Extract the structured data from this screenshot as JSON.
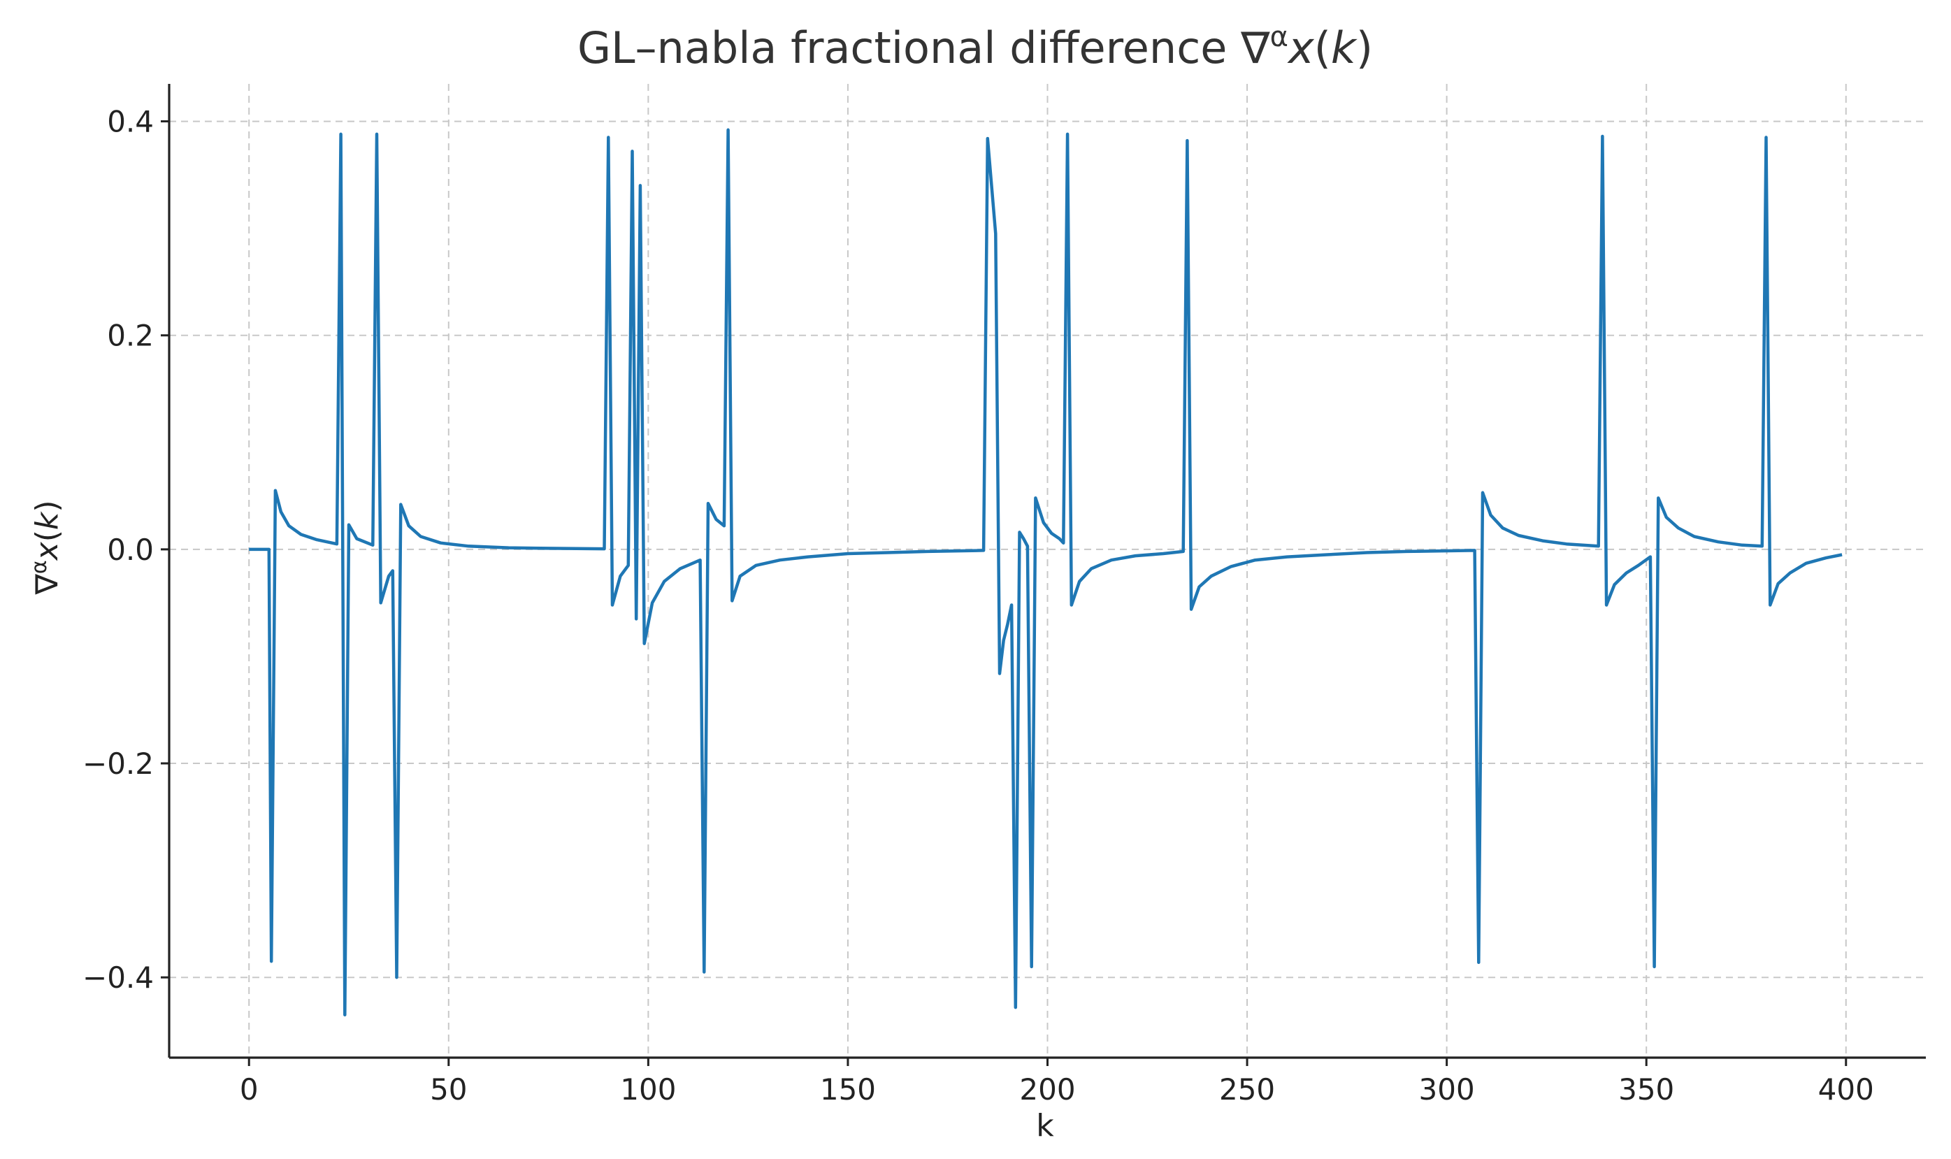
{
  "chart_data": {
    "type": "line",
    "title": "GL–nabla fractional difference ∇^α x(k)",
    "title_parts": {
      "pre": "GL–nabla fractional difference ∇",
      "sup": "α",
      "var": "x",
      "paren_open": "(",
      "k": "k",
      "paren_close": ")"
    },
    "xlabel": "k",
    "ylabel_parts": {
      "pre": "∇",
      "sup": "α",
      "var": "x",
      "paren_open": "(",
      "k": "k",
      "paren_close": ")"
    },
    "xlim": [
      -20,
      420
    ],
    "ylim": [
      -0.475,
      0.435
    ],
    "xticks": [
      0,
      50,
      100,
      150,
      200,
      250,
      300,
      350,
      400
    ],
    "xtick_labels": [
      "0",
      "50",
      "100",
      "150",
      "200",
      "250",
      "300",
      "350",
      "400"
    ],
    "yticks": [
      -0.4,
      -0.2,
      0.0,
      0.2,
      0.4
    ],
    "ytick_labels": [
      "−0.4",
      "−0.2",
      "0.0",
      "0.2",
      "0.4"
    ],
    "grid": true,
    "legend": "none",
    "series": [
      {
        "color": "#1f77b4",
        "points": [
          [
            0,
            0
          ],
          [
            5,
            0
          ],
          [
            5.6,
            -0.385
          ],
          [
            6.6,
            0.055
          ],
          [
            8,
            0.035
          ],
          [
            10,
            0.022
          ],
          [
            13,
            0.014
          ],
          [
            17,
            0.009
          ],
          [
            22,
            0.005
          ],
          [
            23,
            0.388
          ],
          [
            24,
            -0.435
          ],
          [
            25,
            0.023
          ],
          [
            27,
            0.01
          ],
          [
            31,
            0.004
          ],
          [
            32,
            0.388
          ],
          [
            33,
            -0.05
          ],
          [
            35,
            -0.025
          ],
          [
            36,
            -0.02
          ],
          [
            37,
            -0.4
          ],
          [
            38,
            0.042
          ],
          [
            40,
            0.022
          ],
          [
            43,
            0.012
          ],
          [
            48,
            0.006
          ],
          [
            55,
            0.003
          ],
          [
            65,
            0.0015
          ],
          [
            75,
            0.001
          ],
          [
            89,
            0.0005
          ],
          [
            90,
            0.385
          ],
          [
            91,
            -0.052
          ],
          [
            93,
            -0.025
          ],
          [
            95,
            -0.015
          ],
          [
            96,
            0.372
          ],
          [
            97,
            -0.065
          ],
          [
            98,
            0.34
          ],
          [
            99,
            -0.088
          ],
          [
            101,
            -0.05
          ],
          [
            104,
            -0.03
          ],
          [
            108,
            -0.018
          ],
          [
            113,
            -0.01
          ],
          [
            114,
            -0.395
          ],
          [
            115,
            0.043
          ],
          [
            117,
            0.028
          ],
          [
            119,
            0.022
          ],
          [
            120,
            0.392
          ],
          [
            121,
            -0.048
          ],
          [
            123,
            -0.025
          ],
          [
            127,
            -0.015
          ],
          [
            133,
            -0.01
          ],
          [
            140,
            -0.007
          ],
          [
            150,
            -0.004
          ],
          [
            160,
            -0.003
          ],
          [
            170,
            -0.002
          ],
          [
            184,
            -0.001
          ],
          [
            185,
            0.384
          ],
          [
            187,
            0.295
          ],
          [
            188,
            -0.116
          ],
          [
            189,
            -0.085
          ],
          [
            190,
            -0.07
          ],
          [
            191,
            -0.052
          ],
          [
            192,
            -0.428
          ],
          [
            193,
            0.016
          ],
          [
            194,
            0.01
          ],
          [
            195,
            0.003
          ],
          [
            196,
            -0.39
          ],
          [
            197,
            0.048
          ],
          [
            199,
            0.025
          ],
          [
            201,
            0.015
          ],
          [
            203,
            0.01
          ],
          [
            204,
            0.006
          ],
          [
            205,
            0.388
          ],
          [
            206,
            -0.052
          ],
          [
            208,
            -0.03
          ],
          [
            211,
            -0.018
          ],
          [
            216,
            -0.01
          ],
          [
            222,
            -0.006
          ],
          [
            229,
            -0.004
          ],
          [
            234,
            -0.002
          ],
          [
            235,
            0.382
          ],
          [
            236,
            -0.056
          ],
          [
            238,
            -0.035
          ],
          [
            241,
            -0.025
          ],
          [
            246,
            -0.016
          ],
          [
            252,
            -0.01
          ],
          [
            260,
            -0.007
          ],
          [
            270,
            -0.005
          ],
          [
            280,
            -0.003
          ],
          [
            290,
            -0.002
          ],
          [
            307,
            -0.001
          ],
          [
            308,
            -0.386
          ],
          [
            309,
            0.053
          ],
          [
            311,
            0.032
          ],
          [
            314,
            0.02
          ],
          [
            318,
            0.013
          ],
          [
            324,
            0.008
          ],
          [
            330,
            0.005
          ],
          [
            338,
            0.003
          ],
          [
            339,
            0.386
          ],
          [
            340,
            -0.052
          ],
          [
            342,
            -0.033
          ],
          [
            345,
            -0.022
          ],
          [
            348,
            -0.015
          ],
          [
            351,
            -0.007
          ],
          [
            352,
            -0.39
          ],
          [
            353,
            0.048
          ],
          [
            355,
            0.03
          ],
          [
            358,
            0.02
          ],
          [
            362,
            0.012
          ],
          [
            368,
            0.007
          ],
          [
            374,
            0.004
          ],
          [
            379,
            0.003
          ],
          [
            380,
            0.385
          ],
          [
            381,
            -0.052
          ],
          [
            383,
            -0.032
          ],
          [
            386,
            -0.022
          ],
          [
            390,
            -0.013
          ],
          [
            395,
            -0.008
          ],
          [
            399,
            -0.005
          ]
        ]
      }
    ]
  }
}
